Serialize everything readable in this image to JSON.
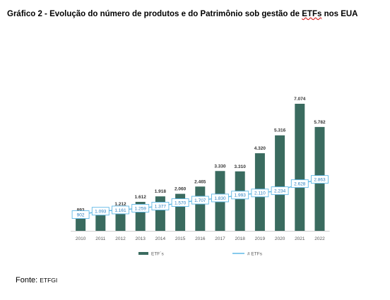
{
  "title": {
    "prefix": "Gráfico 2 - Evolução do número de produtos e do Patrimônio sob gestão de ",
    "underlined": "ETFs",
    "suffix": " nos EUA"
  },
  "source": {
    "label": "Fonte:",
    "value": "ETFGI"
  },
  "chart_data": {
    "type": "bar",
    "categories": [
      "2010",
      "2011",
      "2012",
      "2013",
      "2014",
      "2015",
      "2016",
      "2017",
      "2018",
      "2019",
      "2020",
      "2021",
      "2022"
    ],
    "series": [
      {
        "name": "ETF´s",
        "type": "bar",
        "color": "#3a6b5f",
        "values": [
          893,
          938,
          1212,
          1612,
          1918,
          2060,
          2465,
          3330,
          3310,
          4320,
          5316,
          7074,
          5782
        ],
        "labels": [
          "893",
          "938",
          "1.212",
          "1.612",
          "1.918",
          "2.060",
          "2.465",
          "3.330",
          "3.310",
          "4.320",
          "5.316",
          "7.074",
          "5.782"
        ]
      },
      {
        "name": "# ETFs",
        "type": "line",
        "color": "#5fb8e6",
        "values": [
          902,
          1093,
          1161,
          1259,
          1377,
          1570,
          1707,
          1830,
          1993,
          2110,
          2234,
          2628,
          2863
        ],
        "labels": [
          "902",
          "1.093",
          "1.161",
          "1.259",
          "1.377",
          "1.570",
          "1.707",
          "1.830",
          "1.993",
          "2.110",
          "2.234",
          "2.628",
          "2.863"
        ]
      }
    ],
    "ylim": [
      0,
      7500
    ],
    "grid": false,
    "legend_position": "bottom"
  }
}
